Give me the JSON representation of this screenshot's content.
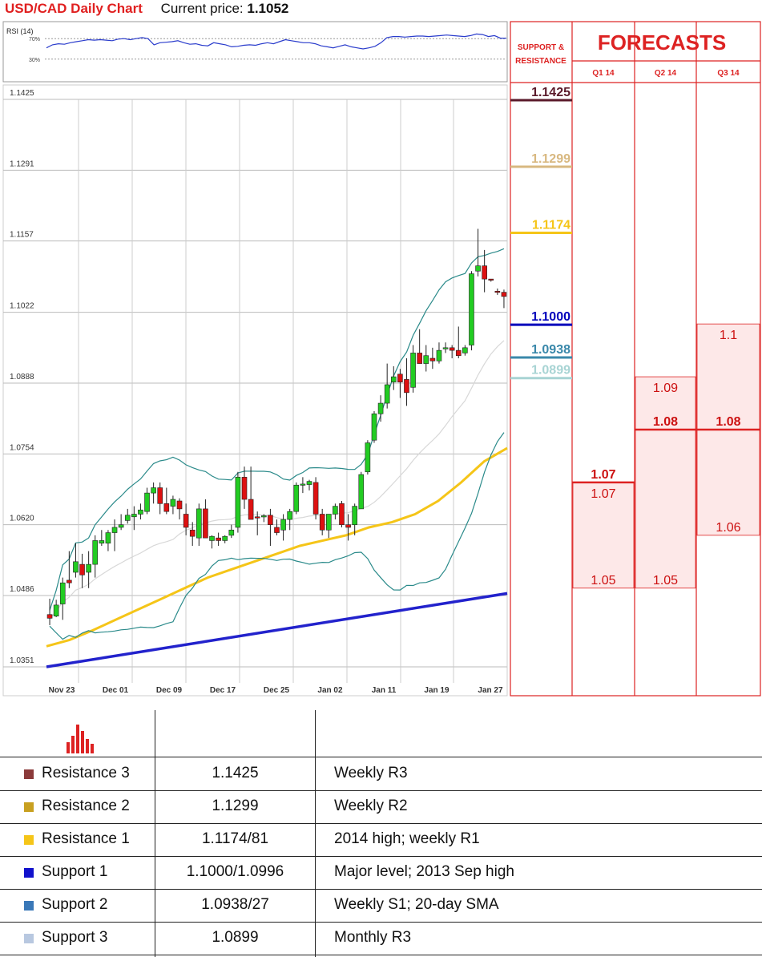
{
  "header": {
    "title": "USD/CAD Daily Chart",
    "price_label": "Current price:",
    "price_value": "1.1052"
  },
  "colors": {
    "bull": "#22cc22",
    "bear": "#dd1111",
    "sma_fast": "#f5c518",
    "sma_slow": "#2222cc",
    "bands": "#2a8a8a",
    "middle_band": "#d8d8d8",
    "accent": "#e02020"
  },
  "chart_data": [
    {
      "type": "line",
      "title": "RSI (14)",
      "yticks": [
        "70%",
        "30%"
      ],
      "ylim": [
        0,
        100
      ],
      "values": [
        52,
        58,
        60,
        59,
        62,
        64,
        66,
        68,
        67,
        68,
        67,
        66,
        69,
        70,
        68,
        70,
        72,
        70,
        58,
        62,
        63,
        64,
        66,
        62,
        59,
        60,
        57,
        56,
        62,
        60,
        58,
        54,
        55,
        57,
        58,
        57,
        60,
        62,
        60,
        64,
        68,
        66,
        64,
        62,
        62,
        60,
        56,
        54,
        52,
        55,
        58,
        54,
        52,
        50,
        52,
        55,
        62,
        72,
        74,
        74,
        73,
        74,
        75,
        75,
        74,
        75,
        76,
        77,
        76,
        75,
        74,
        76,
        79,
        78,
        74,
        76,
        71,
        71
      ]
    },
    {
      "type": "candlestick",
      "title": "USD/CAD Daily Chart",
      "ylim": [
        1.0305,
        1.147
      ],
      "yticks": [
        "1.1425",
        "1.1291",
        "1.1157",
        "1.1022",
        "1.0888",
        "1.0754",
        "1.0620",
        "1.0486",
        "1.0351"
      ],
      "xticks": [
        "Nov 23",
        "Dec 01",
        "Dec 09",
        "Dec 17",
        "Dec 25",
        "Jan 02",
        "Jan 11",
        "Jan 19",
        "Jan 27"
      ],
      "candles": [
        {
          "o": 1.045,
          "h": 1.048,
          "l": 1.043,
          "c": 1.0443
        },
        {
          "o": 1.0447,
          "h": 1.0478,
          "l": 1.0445,
          "c": 1.0468
        },
        {
          "o": 1.047,
          "h": 1.052,
          "l": 1.044,
          "c": 1.051
        },
        {
          "o": 1.0515,
          "h": 1.057,
          "l": 1.05,
          "c": 1.051
        },
        {
          "o": 1.053,
          "h": 1.0585,
          "l": 1.052,
          "c": 1.055
        },
        {
          "o": 1.0545,
          "h": 1.0565,
          "l": 1.05,
          "c": 1.0525
        },
        {
          "o": 1.053,
          "h": 1.057,
          "l": 1.05,
          "c": 1.0545
        },
        {
          "o": 1.0545,
          "h": 1.06,
          "l": 1.052,
          "c": 1.059
        },
        {
          "o": 1.0585,
          "h": 1.061,
          "l": 1.058,
          "c": 1.059
        },
        {
          "o": 1.0585,
          "h": 1.061,
          "l": 1.057,
          "c": 1.0605
        },
        {
          "o": 1.0605,
          "h": 1.063,
          "l": 1.057,
          "c": 1.0615
        },
        {
          "o": 1.0615,
          "h": 1.064,
          "l": 1.061,
          "c": 1.062
        },
        {
          "o": 1.0628,
          "h": 1.065,
          "l": 1.0622,
          "c": 1.0638
        },
        {
          "o": 1.0635,
          "h": 1.0655,
          "l": 1.061,
          "c": 1.064
        },
        {
          "o": 1.064,
          "h": 1.066,
          "l": 1.063,
          "c": 1.0648
        },
        {
          "o": 1.0645,
          "h": 1.069,
          "l": 1.064,
          "c": 1.068
        },
        {
          "o": 1.068,
          "h": 1.07,
          "l": 1.066,
          "c": 1.069
        },
        {
          "o": 1.069,
          "h": 1.07,
          "l": 1.064,
          "c": 1.066
        },
        {
          "o": 1.066,
          "h": 1.069,
          "l": 1.064,
          "c": 1.0645
        },
        {
          "o": 1.0655,
          "h": 1.0675,
          "l": 1.064,
          "c": 1.0668
        },
        {
          "o": 1.0665,
          "h": 1.067,
          "l": 1.063,
          "c": 1.065
        },
        {
          "o": 1.064,
          "h": 1.066,
          "l": 1.06,
          "c": 1.0615
        },
        {
          "o": 1.061,
          "h": 1.0625,
          "l": 1.058,
          "c": 1.0598
        },
        {
          "o": 1.0595,
          "h": 1.066,
          "l": 1.058,
          "c": 1.065
        },
        {
          "o": 1.065,
          "h": 1.0668,
          "l": 1.06,
          "c": 1.0595
        },
        {
          "o": 1.059,
          "h": 1.06,
          "l": 1.0575,
          "c": 1.0598
        },
        {
          "o": 1.0595,
          "h": 1.0605,
          "l": 1.058,
          "c": 1.059
        },
        {
          "o": 1.059,
          "h": 1.06,
          "l": 1.0585,
          "c": 1.0598
        },
        {
          "o": 1.06,
          "h": 1.062,
          "l": 1.0595,
          "c": 1.061
        },
        {
          "o": 1.0615,
          "h": 1.072,
          "l": 1.0605,
          "c": 1.071
        },
        {
          "o": 1.071,
          "h": 1.073,
          "l": 1.065,
          "c": 1.0668
        },
        {
          "o": 1.0668,
          "h": 1.073,
          "l": 1.064,
          "c": 1.063
        },
        {
          "o": 1.0635,
          "h": 1.0645,
          "l": 1.06,
          "c": 1.0633
        },
        {
          "o": 1.0636,
          "h": 1.064,
          "l": 1.0625,
          "c": 1.0637
        },
        {
          "o": 1.0638,
          "h": 1.065,
          "l": 1.058,
          "c": 1.062
        },
        {
          "o": 1.0615,
          "h": 1.063,
          "l": 1.06,
          "c": 1.0605
        },
        {
          "o": 1.061,
          "h": 1.064,
          "l": 1.059,
          "c": 1.063
        },
        {
          "o": 1.063,
          "h": 1.065,
          "l": 1.061,
          "c": 1.0645
        },
        {
          "o": 1.0645,
          "h": 1.07,
          "l": 1.064,
          "c": 1.0695
        },
        {
          "o": 1.0695,
          "h": 1.071,
          "l": 1.068,
          "c": 1.0697
        },
        {
          "o": 1.0696,
          "h": 1.0705,
          "l": 1.0685,
          "c": 1.0702
        },
        {
          "o": 1.07,
          "h": 1.071,
          "l": 1.063,
          "c": 1.064
        },
        {
          "o": 1.064,
          "h": 1.065,
          "l": 1.06,
          "c": 1.061
        },
        {
          "o": 1.061,
          "h": 1.064,
          "l": 1.0595,
          "c": 1.064
        },
        {
          "o": 1.064,
          "h": 1.066,
          "l": 1.063,
          "c": 1.0655
        },
        {
          "o": 1.066,
          "h": 1.0665,
          "l": 1.0615,
          "c": 1.062
        },
        {
          "o": 1.062,
          "h": 1.064,
          "l": 1.059,
          "c": 1.0615
        },
        {
          "o": 1.062,
          "h": 1.066,
          "l": 1.06,
          "c": 1.0655
        },
        {
          "o": 1.065,
          "h": 1.072,
          "l": 1.065,
          "c": 1.0715
        },
        {
          "o": 1.072,
          "h": 1.078,
          "l": 1.0715,
          "c": 1.0775
        },
        {
          "o": 1.078,
          "h": 1.0835,
          "l": 1.0775,
          "c": 1.083
        },
        {
          "o": 1.083,
          "h": 1.0865,
          "l": 1.0815,
          "c": 1.085
        },
        {
          "o": 1.085,
          "h": 1.0925,
          "l": 1.084,
          "c": 1.0885
        },
        {
          "o": 1.089,
          "h": 1.092,
          "l": 1.0875,
          "c": 1.09
        },
        {
          "o": 1.0905,
          "h": 1.0915,
          "l": 1.086,
          "c": 1.089
        },
        {
          "o": 1.0895,
          "h": 1.0935,
          "l": 1.0845,
          "c": 1.087
        },
        {
          "o": 1.088,
          "h": 1.096,
          "l": 1.087,
          "c": 1.0945
        },
        {
          "o": 1.0945,
          "h": 1.099,
          "l": 1.0925,
          "c": 1.0925
        },
        {
          "o": 1.0925,
          "h": 1.096,
          "l": 1.091,
          "c": 1.094
        },
        {
          "o": 1.0935,
          "h": 1.0955,
          "l": 1.0915,
          "c": 1.093
        },
        {
          "o": 1.093,
          "h": 1.0965,
          "l": 1.0925,
          "c": 1.095
        },
        {
          "o": 1.0955,
          "h": 1.0965,
          "l": 1.0945,
          "c": 1.0955
        },
        {
          "o": 1.0955,
          "h": 1.096,
          "l": 1.0935,
          "c": 1.095
        },
        {
          "o": 1.095,
          "h": 1.0995,
          "l": 1.0935,
          "c": 1.094
        },
        {
          "o": 1.0945,
          "h": 1.096,
          "l": 1.094,
          "c": 1.0955
        },
        {
          "o": 1.096,
          "h": 1.11,
          "l": 1.095,
          "c": 1.1095
        },
        {
          "o": 1.11,
          "h": 1.118,
          "l": 1.109,
          "c": 1.111
        },
        {
          "o": 1.111,
          "h": 1.114,
          "l": 1.106,
          "c": 1.1085
        },
        {
          "o": 1.1085,
          "h": 1.1085,
          "l": 1.108,
          "c": 1.1083
        },
        {
          "o": 1.1062,
          "h": 1.1067,
          "l": 1.1055,
          "c": 1.106
        },
        {
          "o": 1.106,
          "h": 1.1065,
          "l": 1.103,
          "c": 1.1052
        }
      ]
    }
  ],
  "support_resistance": {
    "title_line1": "SUPPORT &",
    "title_line2": "RESISTANCE",
    "levels": [
      {
        "label": "1.1425",
        "value": 1.1425,
        "color": "#5a1a2a"
      },
      {
        "label": "1.1299",
        "value": 1.1299,
        "color": "#d8b880"
      },
      {
        "label": "1.1174",
        "value": 1.1174,
        "color": "#f5c518"
      },
      {
        "label": "1.1000",
        "value": 1.1,
        "color": "#0000bb"
      },
      {
        "label": "1.0938",
        "value": 1.0938,
        "color": "#3a88aa"
      },
      {
        "label": "1.0899",
        "value": 1.0899,
        "color": "#a8d4d4"
      }
    ]
  },
  "forecasts": {
    "title": "FORECASTS",
    "columns": [
      {
        "label": "Q1 14",
        "high": "1.07",
        "high_v": 1.07,
        "consensus": "1.07",
        "consensus_v": 1.07,
        "mid": "",
        "low": "1.05",
        "low_v": 1.05
      },
      {
        "label": "Q2 14",
        "high": "1.09",
        "high_v": 1.09,
        "consensus": "1.08",
        "consensus_v": 1.08,
        "low": "1.05",
        "low_v": 1.05
      },
      {
        "label": "Q3 14",
        "high": "1.1",
        "high_v": 1.1,
        "consensus": "1.08",
        "consensus_v": 1.08,
        "low": "1.06",
        "low_v": 1.06
      }
    ]
  },
  "table": {
    "rows": [
      {
        "name": "Resistance 3",
        "value": "1.1425",
        "comment": "Weekly R3",
        "color": "#8b3a3a"
      },
      {
        "name": "Resistance 2",
        "value": "1.1299",
        "comment": "Weekly R2",
        "color": "#c8a020"
      },
      {
        "name": "Resistance 1",
        "value": "1.1174/81",
        "comment": "2014 high; weekly R1",
        "color": "#f5c518"
      },
      {
        "name": "Support 1",
        "value": "1.1000/1.0996",
        "comment": "Major level; 2013 Sep high",
        "color": "#1111cc"
      },
      {
        "name": "Support 2",
        "value": "1.0938/27",
        "comment": "Weekly S1; 20-day SMA",
        "color": "#3a78b8"
      },
      {
        "name": "Support 3",
        "value": "1.0899",
        "comment": "Monthly R3",
        "color": "#b8c8e0"
      }
    ]
  }
}
